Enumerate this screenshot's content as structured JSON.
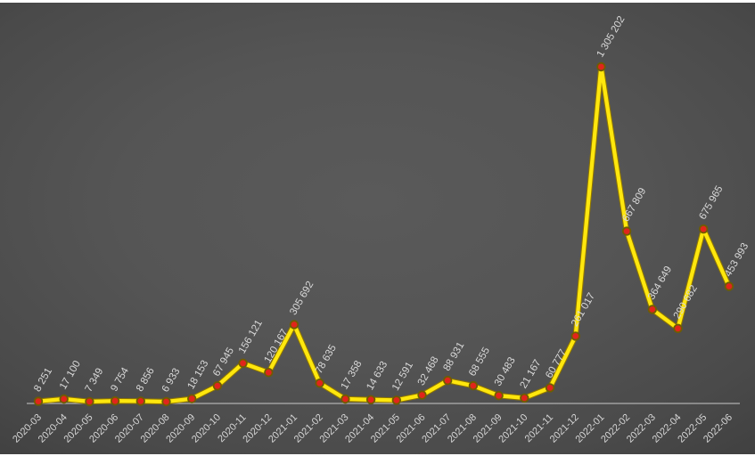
{
  "chart_data": {
    "type": "line",
    "title": "",
    "xlabel": "",
    "ylabel": "",
    "legend": false,
    "grid": false,
    "ylim": [
      0,
      1400000
    ],
    "categories": [
      "2020-03",
      "2020-04",
      "2020-05",
      "2020-06",
      "2020-07",
      "2020-08",
      "2020-09",
      "2020-10",
      "2020-11",
      "2020-12",
      "2021-01",
      "2021-02",
      "2021-03",
      "2021-04",
      "2021-05",
      "2021-06",
      "2021-07",
      "2021-08",
      "2021-09",
      "2021-10",
      "2021-11",
      "2021-12",
      "2022-01",
      "2022-02",
      "2022-03",
      "2022-04",
      "2022-05",
      "2022-06"
    ],
    "values": [
      8251,
      17100,
      7349,
      9754,
      8856,
      6933,
      18153,
      67945,
      156121,
      120167,
      305692,
      78635,
      17358,
      14633,
      12591,
      32468,
      88931,
      68555,
      30483,
      21167,
      60777,
      261017,
      1305202,
      667809,
      364649,
      290682,
      675965,
      453993
    ],
    "data_labels": [
      "8 251",
      "17 100",
      "7 349",
      "9 754",
      "8 856",
      "6 933",
      "18 153",
      "67 945",
      "156 121",
      "120 167",
      "305 692",
      "78 635",
      "17 358",
      "14 633",
      "12 591",
      "32 468",
      "88 931",
      "68 555",
      "30 483",
      "21 167",
      "60 777",
      "261 017",
      "1 305 202",
      "667 809",
      "364 649",
      "290 682",
      "675 965",
      "453 993"
    ],
    "colors": {
      "line": "#ffe70d",
      "line_edge": "#8f7600",
      "marker_fill": "#e1251b",
      "marker_border": "#6f5d00",
      "axis_line": "#c9c9c9",
      "axis_text": "#d6d6d6",
      "label_text": "#d9d9d9",
      "background_center": "#5a5a5a",
      "background_edge": "#212121",
      "frame": "#ffffff"
    }
  }
}
